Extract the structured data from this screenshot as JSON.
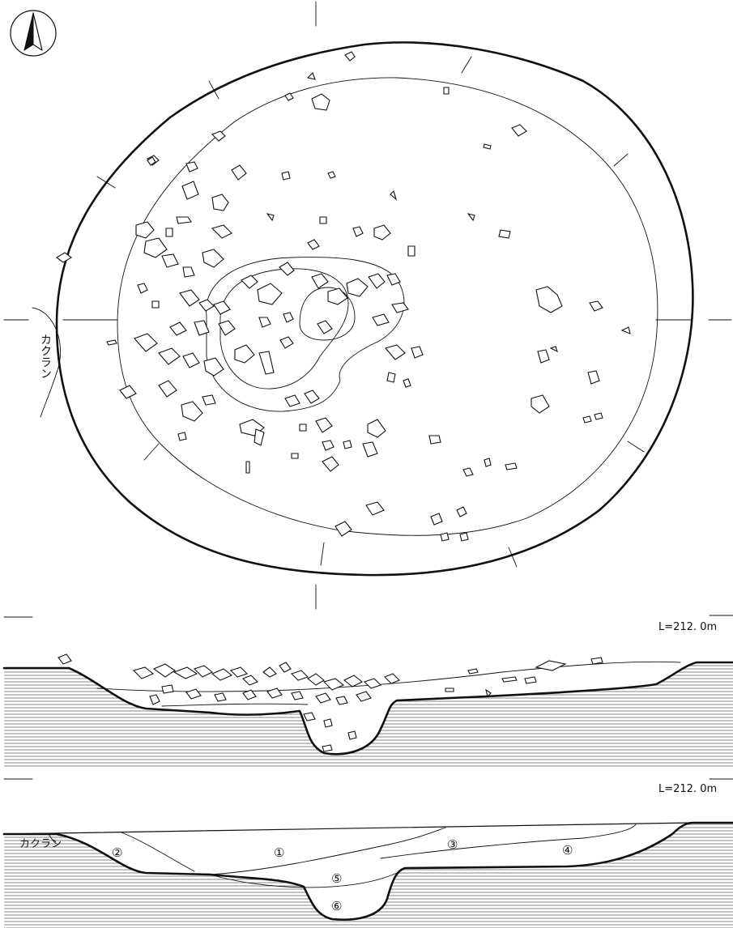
{
  "north_arrow": {
    "icon": "north-arrow-icon"
  },
  "plan": {
    "disturbance_label": "カクラン",
    "pit_icon": "pit-plan-outline-icon"
  },
  "section_a": {
    "level_label": "L=212. 0m",
    "stones_icon": "stone-cluster-section-icon"
  },
  "section_b": {
    "level_label": "L=212. 0m",
    "disturbance_label": "カクラン",
    "layers": [
      "①",
      "②",
      "③",
      "④",
      "⑤",
      "⑥"
    ]
  }
}
